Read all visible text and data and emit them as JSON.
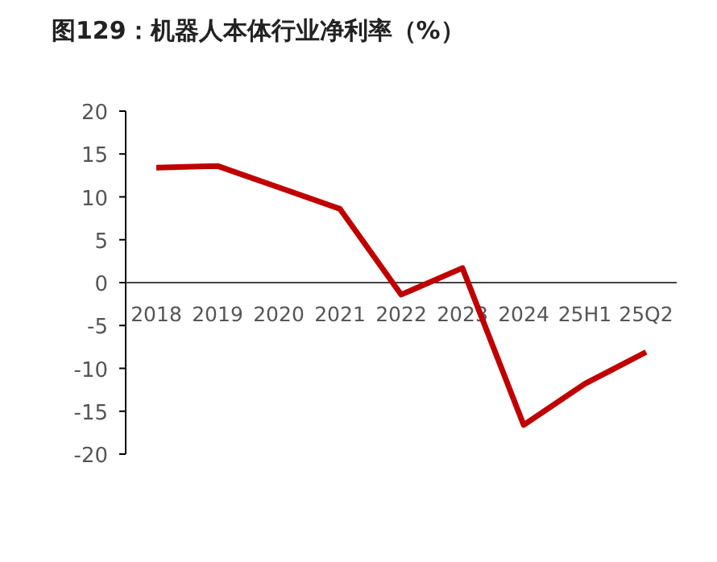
{
  "chart_data": {
    "type": "line",
    "title": "图129：机器人本体行业净利率（%）",
    "categories": [
      "2018",
      "2019",
      "2020",
      "2021",
      "2022",
      "2023",
      "2024",
      "25H1",
      "25Q2"
    ],
    "series": [
      {
        "color": "#c00000",
        "values": [
          13.4,
          13.6,
          11.1,
          8.6,
          -1.4,
          1.7,
          -16.6,
          -11.8,
          -8.1
        ]
      }
    ],
    "ylim": [
      -20,
      20
    ],
    "yticks": [
      -20,
      -15,
      -10,
      -5,
      0,
      5,
      10,
      15,
      20
    ],
    "grid": false,
    "marker": "none",
    "line_style": "solid"
  }
}
